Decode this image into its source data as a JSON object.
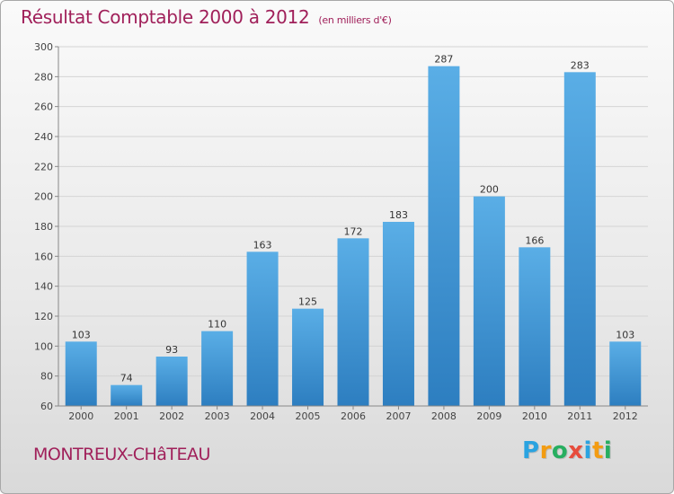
{
  "chart_data": {
    "type": "bar",
    "title": "Résultat Comptable 2000 à 2012",
    "subtitle": "(en milliers d'€)",
    "categories": [
      "2000",
      "2001",
      "2002",
      "2003",
      "2004",
      "2005",
      "2006",
      "2007",
      "2008",
      "2009",
      "2010",
      "2011",
      "2012"
    ],
    "values": [
      103,
      74,
      93,
      110,
      163,
      125,
      172,
      183,
      287,
      200,
      166,
      283,
      103
    ],
    "ylim": [
      60,
      300
    ],
    "yticks": [
      60,
      80,
      100,
      120,
      140,
      160,
      180,
      200,
      220,
      240,
      260,
      280,
      300
    ],
    "grid": true,
    "xlabel": "",
    "ylabel": ""
  },
  "footer": {
    "location": "MONTREUX-CHâTEAU"
  },
  "brand": {
    "letters": [
      "P",
      "r",
      "o",
      "x",
      "i",
      "t",
      "i"
    ],
    "colors": [
      "#2aa3e0",
      "#f39c12",
      "#27ae60",
      "#e74c3c",
      "#2aa3e0",
      "#f39c12",
      "#27ae60"
    ]
  },
  "colors": {
    "bar_light": "#5aaee6",
    "bar_dark": "#2d7ec0",
    "accent": "#a0205a"
  }
}
